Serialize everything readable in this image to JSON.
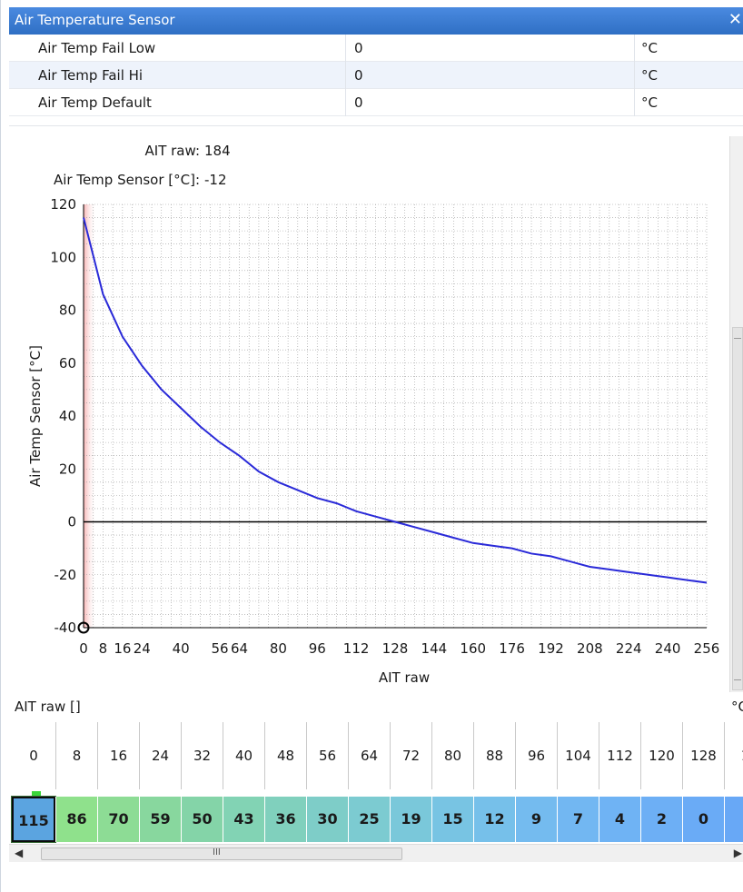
{
  "window": {
    "title": "Air Temperature Sensor",
    "close_glyph": "✕"
  },
  "params": [
    {
      "name": "Air Temp Fail Low",
      "value": "0",
      "unit": "°C"
    },
    {
      "name": "Air Temp Fail Hi",
      "value": "0",
      "unit": "°C"
    },
    {
      "name": "Air Temp Default",
      "value": "0",
      "unit": "°C"
    }
  ],
  "readouts": {
    "raw_label": "AIT raw:",
    "raw_value": "184",
    "temp_label": "Air Temp Sensor [°C]:",
    "temp_value": "-12"
  },
  "chart_data": {
    "type": "line",
    "xlabel": "AIT raw",
    "ylabel": "Air Temp Sensor [°C]",
    "xlim": [
      0,
      256
    ],
    "ylim": [
      -40,
      120
    ],
    "xticks": [
      0,
      8,
      16,
      24,
      40,
      56,
      64,
      80,
      96,
      112,
      128,
      144,
      160,
      176,
      192,
      208,
      224,
      240,
      256
    ],
    "yticks": [
      120,
      100,
      80,
      60,
      40,
      20,
      0,
      -20,
      -40
    ],
    "grid": true,
    "colors": {
      "line": "#2a2ad8",
      "zero_line": "#000000",
      "highlight": "#f7b4b4"
    },
    "series": [
      {
        "x": [
          0,
          8,
          16,
          24,
          32,
          40,
          48,
          56,
          64,
          72,
          80,
          88,
          96,
          104,
          112,
          120,
          128,
          136,
          144,
          152,
          160,
          168,
          176,
          184,
          192,
          200,
          208,
          216,
          224,
          232,
          240,
          248,
          256
        ],
        "y": [
          115,
          86,
          70,
          59,
          50,
          43,
          36,
          30,
          25,
          19,
          15,
          12,
          9,
          7,
          4,
          2,
          0,
          -2,
          -4,
          -6,
          -8,
          -9,
          -10,
          -12,
          -13,
          -15,
          -17,
          -18,
          -19,
          -20,
          -21,
          -22,
          -23
        ]
      }
    ]
  },
  "table": {
    "label": "AIT raw []",
    "unit": "°C",
    "x": [
      "0",
      "8",
      "16",
      "24",
      "32",
      "40",
      "48",
      "56",
      "64",
      "72",
      "80",
      "88",
      "96",
      "104",
      "112",
      "120",
      "128",
      "1"
    ],
    "y": [
      "115",
      "86",
      "70",
      "59",
      "50",
      "43",
      "36",
      "30",
      "25",
      "19",
      "15",
      "12",
      "9",
      "7",
      "4",
      "2",
      "0",
      ""
    ],
    "cell_colors": [
      "#5ba4e0",
      "#8fe18c",
      "#8ddc95",
      "#88d79e",
      "#84d4a8",
      "#82d3b4",
      "#80d0bd",
      "#7ecdc8",
      "#7ccbd1",
      "#7ac8da",
      "#78c4e3",
      "#76c0ea",
      "#74bbef",
      "#72b7f2",
      "#6fb3f4",
      "#6dafF5",
      "#6aabf6",
      "#68a8f6"
    ]
  },
  "scroll": {
    "left_arrow": "◀",
    "right_arrow": "▶",
    "grip": "III"
  }
}
